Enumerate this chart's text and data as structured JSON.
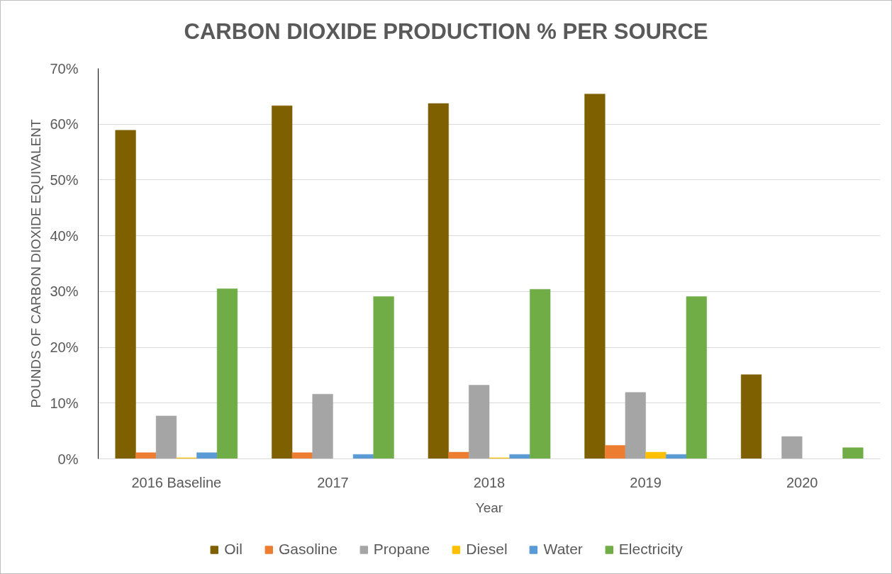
{
  "chart_data": {
    "type": "bar",
    "title": "CARBON DIOXIDE PRODUCTION % PER SOURCE",
    "xlabel": "Year",
    "ylabel": "POUNDS OF CARBON DIOXIDE EQUIVALENT",
    "categories": [
      "2016 Baseline",
      "2017",
      "2018",
      "2019",
      "2020"
    ],
    "series": [
      {
        "name": "Oil",
        "color": "#7f6000",
        "values": [
          58.9,
          63.3,
          63.7,
          65.4,
          15.1
        ]
      },
      {
        "name": "Gasoline",
        "color": "#ed7d31",
        "values": [
          1.1,
          1.1,
          1.2,
          2.4,
          null
        ]
      },
      {
        "name": "Propane",
        "color": "#a5a5a5",
        "values": [
          7.7,
          11.6,
          13.2,
          11.9,
          4.0
        ]
      },
      {
        "name": "Diesel",
        "color": "#ffc000",
        "values": [
          0.2,
          null,
          0.2,
          1.2,
          null
        ]
      },
      {
        "name": "Water",
        "color": "#5b9bd5",
        "values": [
          1.1,
          0.8,
          0.8,
          0.8,
          null
        ]
      },
      {
        "name": "Electricity",
        "color": "#70ad47",
        "values": [
          30.5,
          29.1,
          30.4,
          29.1,
          2.0
        ]
      }
    ],
    "ylim": [
      0,
      70
    ],
    "yticks": [
      {
        "value": 0,
        "label": "0%"
      },
      {
        "value": 10,
        "label": "10%"
      },
      {
        "value": 20,
        "label": "20%"
      },
      {
        "value": 30,
        "label": "30%"
      },
      {
        "value": 40,
        "label": "40%"
      },
      {
        "value": 50,
        "label": "50%"
      },
      {
        "value": 60,
        "label": "60%"
      },
      {
        "value": 70,
        "label": "70%"
      }
    ],
    "grid": "y",
    "legend": "bottom"
  }
}
